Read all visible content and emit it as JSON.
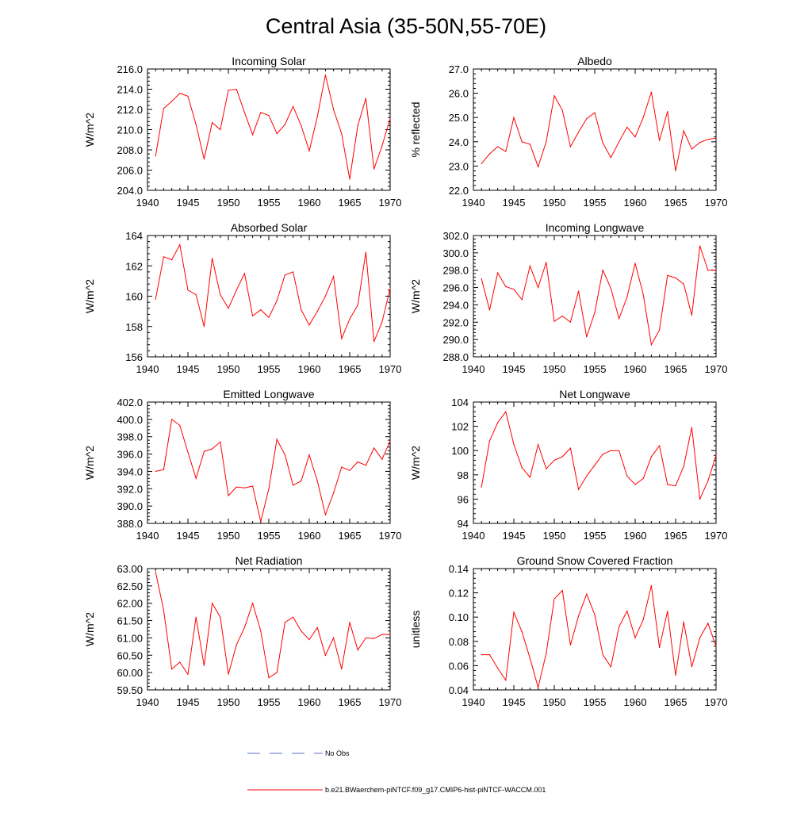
{
  "figure": {
    "title": "Central Asia (35-50N,55-70E)",
    "legend": [
      {
        "label": "No Obs",
        "color": "#5a6fc8",
        "style": "dashed"
      },
      {
        "label": "b.e21.BWaerchem-piNTCF.f09_g17.CMIP6-hist-piNTCF-WACCM.001",
        "color": "#ff0000",
        "style": "solid"
      }
    ]
  },
  "chart_data": [
    {
      "type": "line",
      "title": "Incoming Solar",
      "ylabel": "W/m^2",
      "xlim": [
        1940,
        1970
      ],
      "ylim": [
        204,
        216
      ],
      "xticks": [
        "1940",
        "1945",
        "1950",
        "1955",
        "1960",
        "1965",
        "1970"
      ],
      "yticks": [
        "204.0",
        "206.0",
        "208.0",
        "210.0",
        "212.0",
        "214.0",
        "216.0"
      ],
      "x": [
        1941,
        1942,
        1943,
        1944,
        1945,
        1946,
        1947,
        1948,
        1949,
        1950,
        1951,
        1952,
        1953,
        1954,
        1955,
        1956,
        1957,
        1958,
        1959,
        1960,
        1961,
        1962,
        1963,
        1964,
        1965,
        1966,
        1967,
        1968,
        1969,
        1970
      ],
      "values": [
        207.4,
        212.1,
        212.8,
        213.6,
        213.3,
        210.5,
        207.1,
        210.7,
        210.0,
        213.9,
        214.0,
        211.7,
        209.5,
        211.7,
        211.4,
        209.6,
        210.5,
        212.3,
        210.4,
        207.9,
        211.3,
        215.4,
        212.0,
        209.6,
        205.1,
        210.4,
        213.1,
        206.1,
        208.4,
        211.1
      ],
      "series_name": "b.e21.BWaerchem-piNTCF.f09_g17.CMIP6-hist-piNTCF-WACCM.001",
      "color": "#ff0000"
    },
    {
      "type": "line",
      "title": "Albedo",
      "ylabel": "% reflected",
      "xlim": [
        1940,
        1970
      ],
      "ylim": [
        22,
        27
      ],
      "xticks": [
        "1940",
        "1945",
        "1950",
        "1955",
        "1960",
        "1965",
        "1970"
      ],
      "yticks": [
        "22.0",
        "23.0",
        "24.0",
        "25.0",
        "26.0",
        "27.0"
      ],
      "x": [
        1941,
        1942,
        1943,
        1944,
        1945,
        1946,
        1947,
        1948,
        1949,
        1950,
        1951,
        1952,
        1953,
        1954,
        1955,
        1956,
        1957,
        1958,
        1959,
        1960,
        1961,
        1962,
        1963,
        1964,
        1965,
        1966,
        1967,
        1968,
        1969,
        1970
      ],
      "values": [
        23.1,
        23.5,
        23.8,
        23.6,
        25.0,
        24.0,
        23.9,
        22.97,
        24.0,
        25.9,
        25.3,
        23.8,
        24.4,
        24.95,
        25.2,
        23.95,
        23.35,
        24.0,
        24.6,
        24.2,
        25.0,
        26.05,
        24.05,
        25.25,
        22.8,
        24.45,
        23.7,
        23.97,
        24.1,
        24.15
      ],
      "series_name": "b.e21.BWaerchem-piNTCF.f09_g17.CMIP6-hist-piNTCF-WACCM.001",
      "color": "#ff0000"
    },
    {
      "type": "line",
      "title": "Absorbed Solar",
      "ylabel": "W/m^2",
      "xlim": [
        1940,
        1970
      ],
      "ylim": [
        156,
        164
      ],
      "xticks": [
        "1940",
        "1945",
        "1950",
        "1955",
        "1960",
        "1965",
        "1970"
      ],
      "yticks": [
        "156",
        "158",
        "160",
        "162",
        "164"
      ],
      "x": [
        1941,
        1942,
        1943,
        1944,
        1945,
        1946,
        1947,
        1948,
        1949,
        1950,
        1951,
        1952,
        1953,
        1954,
        1955,
        1956,
        1957,
        1958,
        1959,
        1960,
        1961,
        1962,
        1963,
        1964,
        1965,
        1966,
        1967,
        1968,
        1969,
        1970
      ],
      "values": [
        159.8,
        162.6,
        162.4,
        163.4,
        160.4,
        160.1,
        158.0,
        162.5,
        160.1,
        159.2,
        160.4,
        161.5,
        158.7,
        159.1,
        158.6,
        159.7,
        161.4,
        161.6,
        159.1,
        158.1,
        159.0,
        160.0,
        161.3,
        157.2,
        158.5,
        159.4,
        162.9,
        157.0,
        158.3,
        160.5
      ],
      "series_name": "b.e21.BWaerchem-piNTCF.f09_g17.CMIP6-hist-piNTCF-WACCM.001",
      "color": "#ff0000"
    },
    {
      "type": "line",
      "title": "Incoming Longwave",
      "ylabel": "W/m^2",
      "xlim": [
        1940,
        1970
      ],
      "ylim": [
        288,
        302
      ],
      "xticks": [
        "1940",
        "1945",
        "1950",
        "1955",
        "1960",
        "1965",
        "1970"
      ],
      "yticks": [
        "288.0",
        "290.0",
        "292.0",
        "294.0",
        "296.0",
        "298.0",
        "300.0",
        "302.0"
      ],
      "x": [
        1941,
        1942,
        1943,
        1944,
        1945,
        1946,
        1947,
        1948,
        1949,
        1950,
        1951,
        1952,
        1953,
        1954,
        1955,
        1956,
        1957,
        1958,
        1959,
        1960,
        1961,
        1962,
        1963,
        1964,
        1965,
        1966,
        1967,
        1968,
        1969,
        1970
      ],
      "values": [
        297.0,
        293.4,
        297.7,
        296.1,
        295.8,
        294.6,
        298.5,
        296.0,
        298.9,
        292.1,
        292.7,
        292.0,
        295.6,
        290.3,
        293.1,
        298.0,
        295.9,
        292.4,
        294.9,
        298.8,
        295.2,
        289.4,
        291.1,
        297.4,
        297.1,
        296.4,
        292.8,
        300.8,
        298.0,
        298.0
      ],
      "series_name": "b.e21.BWaerchem-piNTCF.f09_g17.CMIP6-hist-piNTCF-WACCM.001",
      "color": "#ff0000"
    },
    {
      "type": "line",
      "title": "Emitted Longwave",
      "ylabel": "W/m^2",
      "xlim": [
        1940,
        1970
      ],
      "ylim": [
        388,
        402
      ],
      "xticks": [
        "1940",
        "1945",
        "1950",
        "1955",
        "1960",
        "1965",
        "1970"
      ],
      "yticks": [
        "388.0",
        "390.0",
        "392.0",
        "394.0",
        "396.0",
        "398.0",
        "400.0",
        "402.0"
      ],
      "x": [
        1941,
        1942,
        1943,
        1944,
        1945,
        1946,
        1947,
        1948,
        1949,
        1950,
        1951,
        1952,
        1953,
        1954,
        1955,
        1956,
        1957,
        1958,
        1959,
        1960,
        1961,
        1962,
        1963,
        1964,
        1965,
        1966,
        1967,
        1968,
        1969,
        1970
      ],
      "values": [
        394.0,
        394.2,
        400.0,
        399.3,
        396.2,
        393.2,
        396.3,
        396.6,
        397.4,
        391.2,
        392.2,
        392.1,
        392.3,
        388.2,
        392.0,
        397.7,
        395.9,
        392.4,
        392.9,
        395.9,
        392.9,
        389.0,
        391.5,
        394.5,
        394.1,
        395.1,
        394.7,
        396.7,
        395.4,
        397.5
      ],
      "series_name": "b.e21.BWaerchem-piNTCF.f09_g17.CMIP6-hist-piNTCF-WACCM.001",
      "color": "#ff0000"
    },
    {
      "type": "line",
      "title": "Net Longwave",
      "ylabel": "W/m^2",
      "xlim": [
        1940,
        1970
      ],
      "ylim": [
        94,
        104
      ],
      "xticks": [
        "1940",
        "1945",
        "1950",
        "1955",
        "1960",
        "1965",
        "1970"
      ],
      "yticks": [
        "94",
        "96",
        "98",
        "100",
        "102",
        "104"
      ],
      "x": [
        1941,
        1942,
        1943,
        1944,
        1945,
        1946,
        1947,
        1948,
        1949,
        1950,
        1951,
        1952,
        1953,
        1954,
        1955,
        1956,
        1957,
        1958,
        1959,
        1960,
        1961,
        1962,
        1963,
        1964,
        1965,
        1966,
        1967,
        1968,
        1969,
        1970
      ],
      "values": [
        97.0,
        100.8,
        102.3,
        103.2,
        100.5,
        98.6,
        97.8,
        100.5,
        98.5,
        99.2,
        99.5,
        100.2,
        96.8,
        97.9,
        98.8,
        99.7,
        100.0,
        100.0,
        97.9,
        97.2,
        97.7,
        99.5,
        100.4,
        97.2,
        97.1,
        98.7,
        101.9,
        96.0,
        97.5,
        99.6
      ],
      "series_name": "b.e21.BWaerchem-piNTCF.f09_g17.CMIP6-hist-piNTCF-WACCM.001",
      "color": "#ff0000"
    },
    {
      "type": "line",
      "title": "Net Radiation",
      "ylabel": "W/m^2",
      "xlim": [
        1940,
        1970
      ],
      "ylim": [
        59.5,
        63.0
      ],
      "xticks": [
        "1940",
        "1945",
        "1950",
        "1955",
        "1960",
        "1965",
        "1970"
      ],
      "yticks": [
        "59.50",
        "60.00",
        "60.50",
        "61.00",
        "61.50",
        "62.00",
        "62.50",
        "63.00"
      ],
      "x": [
        1941,
        1942,
        1943,
        1944,
        1945,
        1946,
        1947,
        1948,
        1949,
        1950,
        1951,
        1952,
        1953,
        1954,
        1955,
        1956,
        1957,
        1958,
        1959,
        1960,
        1961,
        1962,
        1963,
        1964,
        1965,
        1966,
        1967,
        1968,
        1969,
        1970
      ],
      "values": [
        62.9,
        61.8,
        60.1,
        60.3,
        59.95,
        61.6,
        60.2,
        62.0,
        61.6,
        59.95,
        60.8,
        61.3,
        62.0,
        61.2,
        59.85,
        60.0,
        61.45,
        61.6,
        61.2,
        60.95,
        61.3,
        60.5,
        61.0,
        60.1,
        61.45,
        60.65,
        61.0,
        60.98,
        61.1,
        61.1
      ],
      "series_name": "b.e21.BWaerchem-piNTCF.f09_g17.CMIP6-hist-piNTCF-WACCM.001",
      "color": "#ff0000"
    },
    {
      "type": "line",
      "title": "Ground Snow Covered Fraction",
      "ylabel": "unitless",
      "xlim": [
        1940,
        1970
      ],
      "ylim": [
        0.04,
        0.14
      ],
      "xticks": [
        "1940",
        "1945",
        "1950",
        "1955",
        "1960",
        "1965",
        "1970"
      ],
      "yticks": [
        "0.04",
        "0.06",
        "0.08",
        "0.10",
        "0.12",
        "0.14"
      ],
      "x": [
        1941,
        1942,
        1943,
        1944,
        1945,
        1946,
        1947,
        1948,
        1949,
        1950,
        1951,
        1952,
        1953,
        1954,
        1955,
        1956,
        1957,
        1958,
        1959,
        1960,
        1961,
        1962,
        1963,
        1964,
        1965,
        1966,
        1967,
        1968,
        1969,
        1970
      ],
      "values": [
        0.069,
        0.069,
        0.058,
        0.048,
        0.104,
        0.088,
        0.066,
        0.042,
        0.07,
        0.115,
        0.122,
        0.077,
        0.101,
        0.119,
        0.102,
        0.069,
        0.059,
        0.092,
        0.105,
        0.083,
        0.098,
        0.126,
        0.075,
        0.105,
        0.052,
        0.096,
        0.059,
        0.083,
        0.095,
        0.076
      ],
      "series_name": "b.e21.BWaerchem-piNTCF.f09_g17.CMIP6-hist-piNTCF-WACCM.001",
      "color": "#ff0000"
    }
  ]
}
